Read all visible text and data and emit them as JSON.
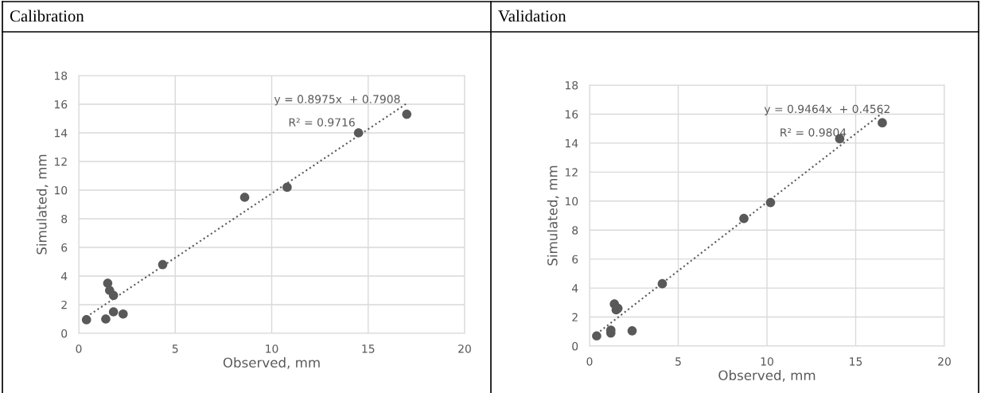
{
  "chart_data": [
    {
      "type": "scatter",
      "title": "Calibration",
      "xlabel": "Observed, mm",
      "ylabel": "Simulated, mm",
      "xlim": [
        0,
        20
      ],
      "xticks": [
        0,
        5,
        10,
        15,
        20
      ],
      "ylim": [
        0,
        18
      ],
      "yticks": [
        0,
        2,
        4,
        6,
        8,
        10,
        12,
        14,
        16,
        18
      ],
      "grid": true,
      "annotations": [
        "y = 0.8975x  + 0.7908",
        "R² = 0.9716"
      ],
      "series": [
        {
          "marker": "circle",
          "color": "#595959",
          "x": [
            0.4,
            1.4,
            1.8,
            2.3,
            1.5,
            1.6,
            1.8,
            4.35,
            8.6,
            10.8,
            14.5,
            17.0
          ],
          "values": [
            0.95,
            1.0,
            1.5,
            1.35,
            3.5,
            3.0,
            2.65,
            4.8,
            9.5,
            10.2,
            14.0,
            15.3
          ]
        },
        {
          "type": "line",
          "marker": "none",
          "line_style": "dotted",
          "color": "#595959",
          "x": [
            0.4,
            17.0
          ],
          "values": [
            1.15,
            16.05
          ]
        }
      ]
    },
    {
      "type": "scatter",
      "title": "Validation",
      "xlabel": "Observed, mm",
      "ylabel": "Simulated, mm",
      "xlim": [
        0,
        20
      ],
      "xticks": [
        0,
        5,
        10,
        15,
        20
      ],
      "ylim": [
        0,
        18
      ],
      "yticks": [
        0,
        2,
        4,
        6,
        8,
        10,
        12,
        14,
        16,
        18
      ],
      "grid": true,
      "annotations": [
        "y = 0.9464x  + 0.4562",
        "R² = 0.9804"
      ],
      "series": [
        {
          "marker": "circle",
          "color": "#595959",
          "x": [
            0.4,
            1.2,
            1.2,
            2.4,
            1.4,
            1.5,
            1.6,
            4.1,
            8.7,
            10.2,
            14.1,
            16.5
          ],
          "values": [
            0.7,
            1.1,
            0.9,
            1.05,
            2.9,
            2.5,
            2.6,
            4.3,
            8.8,
            9.9,
            14.3,
            15.4
          ]
        },
        {
          "type": "line",
          "marker": "none",
          "line_style": "dotted",
          "color": "#595959",
          "x": [
            0.4,
            16.5
          ],
          "values": [
            0.84,
            16.07
          ]
        }
      ]
    }
  ]
}
